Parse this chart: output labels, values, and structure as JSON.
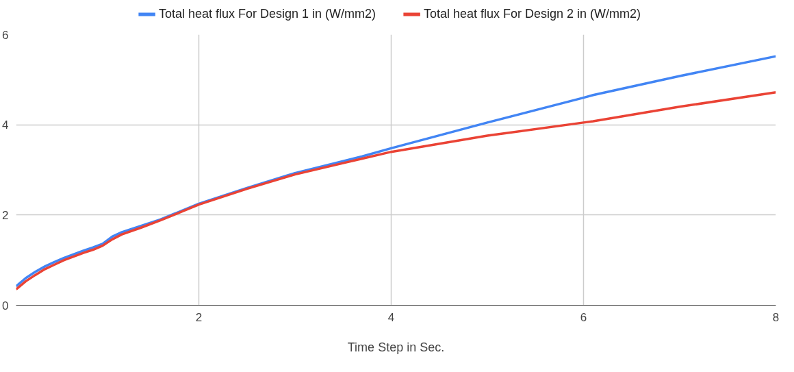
{
  "chart_data": {
    "type": "line",
    "xlabel": "Time Step in Sec.",
    "xlim": [
      0.1,
      8
    ],
    "ylim": [
      0,
      6
    ],
    "xticks": [
      2,
      4,
      6,
      8
    ],
    "yticks": [
      0,
      2,
      4,
      6
    ],
    "grid": true,
    "legend": "top",
    "marker": "none",
    "line_style": "solid",
    "x": [
      0.1,
      0.2,
      0.3,
      0.4,
      0.5,
      0.6,
      0.7,
      0.8,
      0.9,
      1.0,
      1.1,
      1.2,
      1.4,
      1.6,
      2,
      2.5,
      3,
      3.7,
      4,
      5,
      6,
      6.1,
      7,
      8
    ],
    "series": [
      {
        "name": "Total heat flux For Design 1 in (W/mm2)",
        "color": "#4285f4",
        "values": [
          0.42,
          0.6,
          0.74,
          0.86,
          0.96,
          1.05,
          1.13,
          1.21,
          1.28,
          1.36,
          1.52,
          1.62,
          1.76,
          1.9,
          2.25,
          2.6,
          2.93,
          3.3,
          3.48,
          4.05,
          4.6,
          4.66,
          5.08,
          5.52
        ]
      },
      {
        "name": "Total heat flux For Design 2 in (W/mm2)",
        "color": "#ea4335",
        "values": [
          0.35,
          0.53,
          0.67,
          0.8,
          0.9,
          1.0,
          1.08,
          1.16,
          1.23,
          1.32,
          1.46,
          1.57,
          1.72,
          1.88,
          2.23,
          2.58,
          2.9,
          3.25,
          3.4,
          3.76,
          4.05,
          4.08,
          4.4,
          4.72
        ]
      }
    ]
  }
}
